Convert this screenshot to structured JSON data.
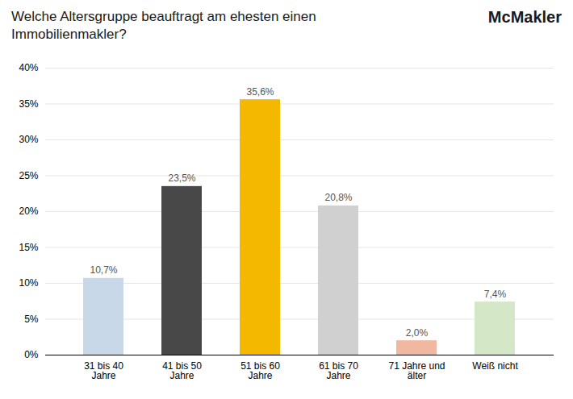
{
  "chart_data": {
    "type": "bar",
    "title": "Welche Altersgruppe beauftragt am ehesten einen\nImmobilienmakler?",
    "annotations": [
      "McMakler"
    ],
    "categories": [
      "31 bis 40\nJahre",
      "41 bis 50\nJahre",
      "51 bis 60\nJahre",
      "61 bis 70\nJahre",
      "71 Jahre und\nälter",
      "Weiß nicht"
    ],
    "values": [
      10.7,
      23.5,
      35.6,
      20.8,
      2.0,
      7.4
    ],
    "value_labels": [
      "10,7%",
      "23,5%",
      "35,6%",
      "20,8%",
      "2,0%",
      "7,4%"
    ],
    "colors": [
      "#c8d8e8",
      "#484848",
      "#f5b800",
      "#d0d0d0",
      "#f0b8a0",
      "#d4e8c8"
    ],
    "ylim": [
      0,
      40
    ],
    "yticks": [
      {
        "value": 0,
        "label": "0%"
      },
      {
        "value": 5,
        "label": "5%"
      },
      {
        "value": 10,
        "label": "10%"
      },
      {
        "value": 15,
        "label": "15%"
      },
      {
        "value": 20,
        "label": "20%"
      },
      {
        "value": 25,
        "label": "25%"
      },
      {
        "value": 30,
        "label": "30%"
      },
      {
        "value": 35,
        "label": "35%"
      },
      {
        "value": 40,
        "label": "40%"
      }
    ],
    "grid": true,
    "data_labels": true
  }
}
